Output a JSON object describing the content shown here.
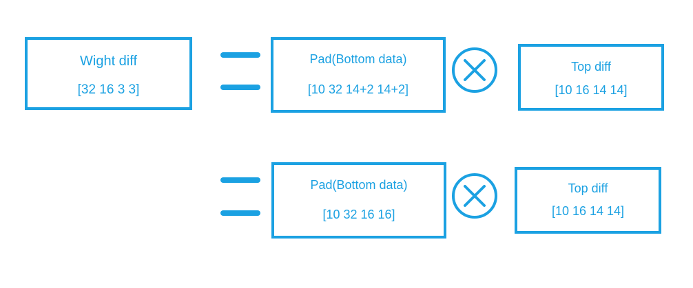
{
  "colors": {
    "accent": "#1ba1e2"
  },
  "weight_box": {
    "title": "Wight diff",
    "shape": "[32 16 3 3]"
  },
  "row1": {
    "pad_box": {
      "title": "Pad(Bottom data)",
      "shape": "[10 32 14+2 14+2]"
    },
    "operator_icon": "circled-times-icon",
    "top_box": {
      "title": "Top diff",
      "shape": "[10 16 14 14]"
    }
  },
  "row2": {
    "pad_box": {
      "title": "Pad(Bottom data)",
      "shape": "[10 32 16 16]"
    },
    "operator_icon": "circled-times-icon",
    "top_box": {
      "title": "Top diff",
      "shape": "[10 16 14 14]"
    }
  }
}
